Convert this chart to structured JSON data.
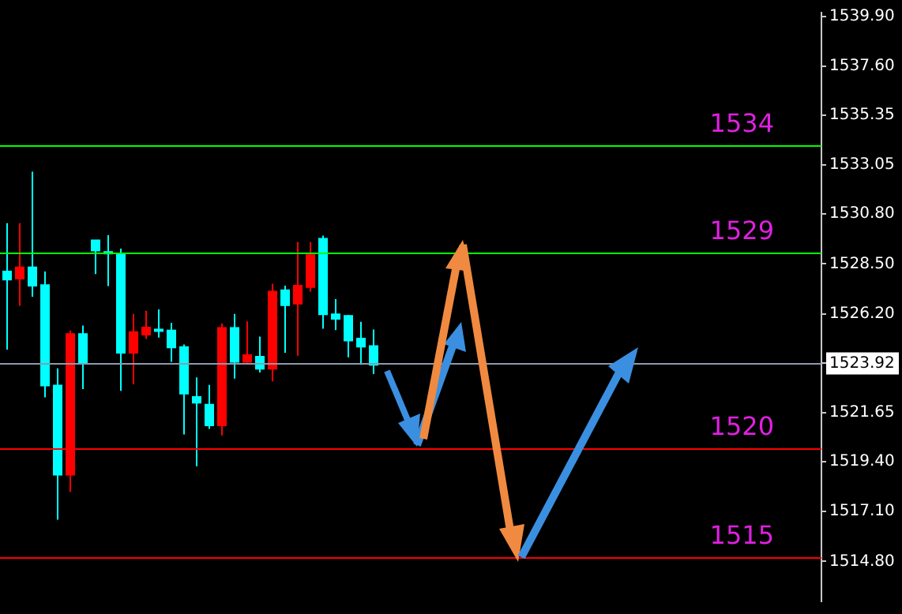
{
  "chart_data": {
    "type": "candlestick",
    "categories": [
      null,
      null,
      null,
      null,
      null,
      null,
      null,
      null,
      null,
      null,
      null,
      null,
      null,
      null,
      null,
      null,
      null,
      null,
      null,
      null,
      null,
      null,
      null,
      null,
      null,
      null,
      null,
      null,
      null,
      null,
      null,
      null,
      null,
      null,
      null,
      null,
      null,
      null,
      null,
      null,
      null,
      null,
      null,
      null,
      null,
      null,
      null,
      null,
      null,
      null,
      null,
      null,
      null,
      null,
      null,
      null,
      null,
      null,
      null,
      null,
      null,
      null,
      null,
      null,
      null
    ],
    "ohlc": [
      [
        1527.78,
        1530.38,
        1524.55,
        1528.15
      ],
      [
        1528.34,
        1530.38,
        1526.57,
        1527.82
      ],
      [
        1527.5,
        1532.75,
        1526.99,
        1528.34
      ],
      [
        1522.9,
        1528.15,
        1522.35,
        1527.52
      ],
      [
        1518.79,
        1523.69,
        1516.72,
        1522.9
      ],
      [
        1525.27,
        1525.43,
        1518.0,
        1518.79
      ],
      [
        1523.92,
        1525.66,
        1522.74,
        1525.27
      ],
      [
        1529.11,
        1529.59,
        1528.03,
        1529.59
      ],
      [
        1529.0,
        1529.82,
        1527.48,
        1529.05
      ],
      [
        1524.41,
        1529.2,
        1522.65,
        1528.99
      ],
      [
        1525.36,
        1526.2,
        1522.95,
        1524.41
      ],
      [
        1525.57,
        1526.34,
        1525.04,
        1525.24
      ],
      [
        1525.42,
        1526.41,
        1525.11,
        1525.48
      ],
      [
        1524.65,
        1525.78,
        1523.99,
        1525.43
      ],
      [
        1522.53,
        1524.79,
        1520.65,
        1524.67
      ],
      [
        1522.11,
        1523.27,
        1519.18,
        1522.37
      ],
      [
        1521.06,
        1522.93,
        1520.9,
        1522.02
      ],
      [
        1525.55,
        1525.76,
        1520.6,
        1521.06
      ],
      [
        1523.99,
        1526.2,
        1523.22,
        1525.55
      ],
      [
        1524.3,
        1525.85,
        1523.95,
        1523.99
      ],
      [
        1523.67,
        1525.15,
        1523.5,
        1524.23
      ],
      [
        1527.22,
        1527.59,
        1523.09,
        1523.67
      ],
      [
        1526.6,
        1527.5,
        1524.41,
        1527.29
      ],
      [
        1527.5,
        1529.5,
        1524.27,
        1526.67
      ],
      [
        1528.9,
        1529.5,
        1527.22,
        1527.43
      ],
      [
        1526.18,
        1529.8,
        1525.52,
        1529.66
      ],
      [
        1525.97,
        1526.88,
        1525.45,
        1526.18
      ],
      [
        1524.97,
        1526.15,
        1524.2,
        1526.11
      ],
      [
        1524.69,
        1525.83,
        1523.85,
        1525.06
      ],
      [
        1523.85,
        1525.48,
        1523.43,
        1524.72
      ],
      null,
      null,
      null,
      null,
      null,
      null,
      null,
      null,
      null,
      null,
      null,
      null,
      null,
      null,
      null,
      null,
      null,
      null,
      null,
      null,
      null,
      null,
      null,
      null,
      null,
      null,
      null,
      null,
      null,
      null,
      null,
      null,
      null,
      null,
      null
    ],
    "colors": [
      "#00ffff",
      "#ff0000",
      "#00ffff",
      "#00ffff",
      "#00ffff",
      "#ff0000",
      "#00ffff",
      "#00ffff",
      "#00ffff",
      "#00ffff",
      "#ff0000",
      "#ff0000",
      "#00ffff",
      "#00ffff",
      "#00ffff",
      "#00ffff",
      "#00ffff",
      "#ff0000",
      "#00ffff",
      "#ff0000",
      "#00ffff",
      "#ff0000",
      "#00ffff",
      "#ff0000",
      "#ff0000",
      "#00ffff",
      "#00ffff",
      "#00ffff",
      "#00ffff",
      "#00ffff",
      null,
      null,
      null,
      null,
      null,
      null,
      null,
      null,
      null,
      null,
      null,
      null,
      null,
      null,
      null,
      null,
      null,
      null,
      null,
      null,
      null,
      null,
      null,
      null,
      null,
      null,
      null,
      null,
      null,
      null,
      null,
      null,
      null,
      null,
      null
    ],
    "ylim": [
      1512.96,
      1540.07
    ],
    "yticks": [
      {
        "value": 1539.9,
        "label": "1539.90"
      },
      {
        "value": 1537.6,
        "label": "1537.60"
      },
      {
        "value": 1535.35,
        "label": "1535.35"
      },
      {
        "value": 1533.05,
        "label": "1533.05"
      },
      {
        "value": 1530.8,
        "label": "1530.80"
      },
      {
        "value": 1528.5,
        "label": "1528.50"
      },
      {
        "value": 1526.2,
        "label": "1526.20"
      },
      {
        "value": 1523.92,
        "label": "1523.92"
      },
      {
        "value": 1521.65,
        "label": "1521.65"
      },
      {
        "value": 1519.4,
        "label": "1519.40"
      },
      {
        "value": 1517.1,
        "label": "1517.10"
      },
      {
        "value": 1514.8,
        "label": "1514.80"
      }
    ],
    "ref_lines": [
      {
        "axis": "y",
        "value": 1534,
        "label": "1534",
        "color": "#00ff00"
      },
      {
        "axis": "y",
        "value": 1529,
        "label": "1529",
        "color": "#00ff00"
      },
      {
        "axis": "y",
        "value": 1523.92,
        "color": "#8a9bb0"
      },
      {
        "axis": "y",
        "value": 1520,
        "label": "1520",
        "color": "#ff0000"
      },
      {
        "axis": "y",
        "value": 1515,
        "label": "1515",
        "color": "#ff0000"
      }
    ],
    "tick_labels": "y",
    "grid": false,
    "legend": false
  }
}
